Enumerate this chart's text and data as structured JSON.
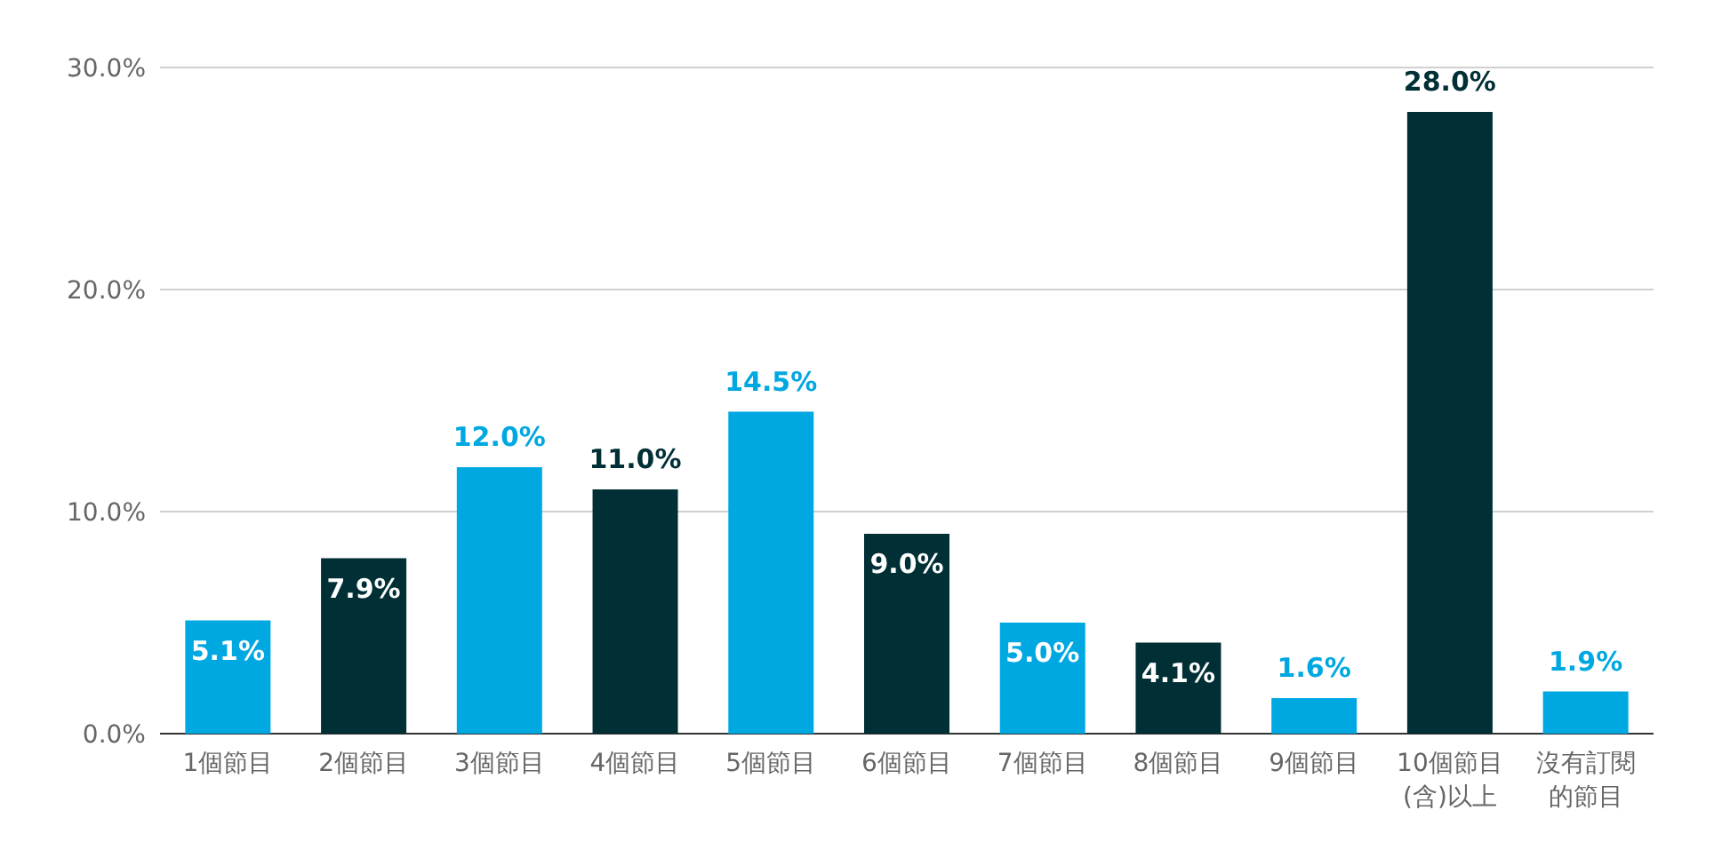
{
  "chart_data": {
    "type": "bar",
    "categories": [
      "1個節目",
      "2個節目",
      "3個節目",
      "4個節目",
      "5個節目",
      "6個節目",
      "7個節目",
      "8個節目",
      "9個節目",
      "10個節目(含)以上",
      "沒有訂閱的節目"
    ],
    "values": [
      5.1,
      7.9,
      12.0,
      11.0,
      14.5,
      9.0,
      5.0,
      4.1,
      1.6,
      28.0,
      1.9
    ],
    "value_labels": [
      "5.1%",
      "7.9%",
      "12.0%",
      "11.0%",
      "14.5%",
      "9.0%",
      "5.0%",
      "4.1%",
      "1.6%",
      "28.0%",
      "1.9%"
    ],
    "colors": [
      "#00a8e1",
      "#002f35",
      "#00a8e1",
      "#002f35",
      "#00a8e1",
      "#002f35",
      "#00a8e1",
      "#002f35",
      "#00a8e1",
      "#002f35",
      "#00a8e1"
    ],
    "ylim": [
      0,
      30
    ],
    "yticks": [
      {
        "value": 0,
        "label": "0.0%"
      },
      {
        "value": 10,
        "label": "10.0%"
      },
      {
        "value": 20,
        "label": "20.0%"
      },
      {
        "value": 30,
        "label": "30.0%"
      }
    ],
    "grid": "y"
  }
}
